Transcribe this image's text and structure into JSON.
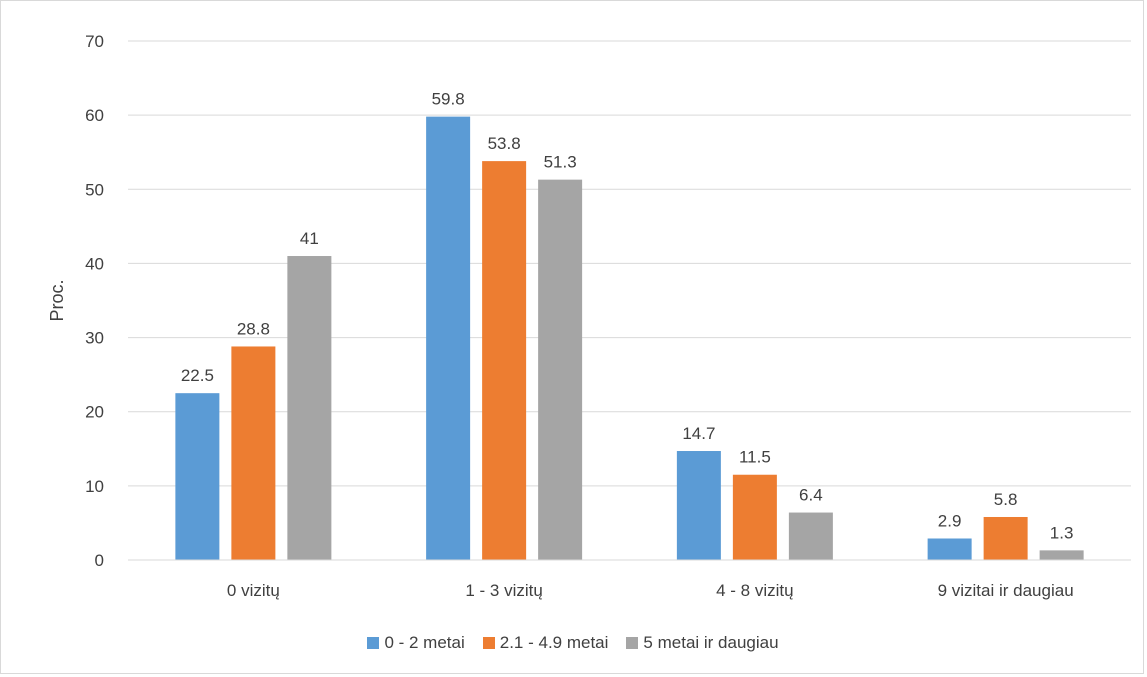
{
  "chart_data": {
    "type": "bar",
    "categories": [
      "0 vizitų",
      "1 - 3 vizitų",
      "4 - 8 vizitų",
      "9 vizitai ir daugiau"
    ],
    "series": [
      {
        "name": "0 - 2 metai",
        "values": [
          22.5,
          59.8,
          14.7,
          2.9
        ],
        "color": "#5b9bd5"
      },
      {
        "name": "2.1 - 4.9 metai",
        "values": [
          28.8,
          53.8,
          11.5,
          5.8
        ],
        "color": "#ed7d31"
      },
      {
        "name": "5 metai ir daugiau",
        "values": [
          41,
          51.3,
          6.4,
          1.3
        ],
        "color": "#a5a5a5"
      }
    ],
    "data_labels": [
      [
        "22.5",
        "59.8",
        "14.7",
        "2.9"
      ],
      [
        "28.8",
        "53.8",
        "11.5",
        "5.8"
      ],
      [
        "41",
        "51.3",
        "6.4",
        "1.3"
      ]
    ],
    "ylabel": "Proc.",
    "xlabel": "",
    "ylim": [
      0,
      70
    ],
    "yticks": [
      0,
      10,
      20,
      30,
      40,
      50,
      60,
      70
    ],
    "grid": true,
    "legend_position": "bottom"
  },
  "colors": {
    "grid": "#d9d9d9",
    "text": "#404040",
    "axis": "#d9d9d9"
  }
}
